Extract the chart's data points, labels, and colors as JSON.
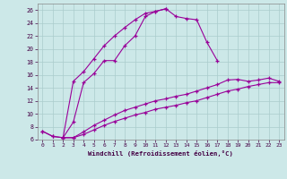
{
  "xlabel": "Windchill (Refroidissement éolien,°C)",
  "bg_color": "#cce8e8",
  "grid_color": "#aacccc",
  "line_color": "#990099",
  "xlim": [
    -0.5,
    23.5
  ],
  "ylim": [
    6,
    27
  ],
  "xticks": [
    0,
    1,
    2,
    3,
    4,
    5,
    6,
    7,
    8,
    9,
    10,
    11,
    12,
    13,
    14,
    15,
    16,
    17,
    18,
    19,
    20,
    21,
    22,
    23
  ],
  "yticks": [
    6,
    8,
    10,
    12,
    14,
    16,
    18,
    20,
    22,
    24,
    26
  ],
  "line1_x": [
    0,
    1,
    2,
    3,
    4,
    5,
    6,
    7,
    8,
    9,
    10,
    11,
    12,
    13,
    14,
    15,
    16,
    17
  ],
  "line1_y": [
    7.3,
    6.5,
    6.3,
    8.7,
    14.8,
    16.2,
    18.2,
    18.2,
    20.5,
    22.0,
    25.0,
    25.8,
    26.2,
    25.0,
    24.7,
    24.5,
    21.0,
    18.2
  ],
  "line2_x": [
    0,
    1,
    2,
    3,
    4,
    5,
    6,
    7,
    8,
    9,
    10,
    11,
    12
  ],
  "line2_y": [
    7.3,
    6.5,
    6.3,
    15.0,
    16.5,
    18.5,
    20.5,
    22.0,
    23.3,
    24.5,
    25.5,
    25.8,
    26.2
  ],
  "line3_x": [
    2,
    3,
    4,
    5,
    6,
    7,
    8,
    9,
    10,
    11,
    12,
    13,
    14,
    15,
    16,
    17,
    18,
    19,
    20,
    21,
    22,
    23
  ],
  "line3_y": [
    6.3,
    6.3,
    7.2,
    8.2,
    9.0,
    9.8,
    10.5,
    11.0,
    11.5,
    12.0,
    12.3,
    12.7,
    13.0,
    13.5,
    14.0,
    14.5,
    15.2,
    15.3,
    15.0,
    15.2,
    15.5,
    15.0
  ],
  "line4_x": [
    2,
    3,
    4,
    5,
    6,
    7,
    8,
    9,
    10,
    11,
    12,
    13,
    14,
    15,
    16,
    17,
    18,
    19,
    20,
    21,
    22,
    23
  ],
  "line4_y": [
    6.3,
    6.3,
    6.8,
    7.5,
    8.2,
    8.8,
    9.3,
    9.8,
    10.2,
    10.7,
    11.0,
    11.3,
    11.7,
    12.0,
    12.5,
    13.0,
    13.5,
    13.8,
    14.2,
    14.5,
    14.8,
    14.8
  ]
}
